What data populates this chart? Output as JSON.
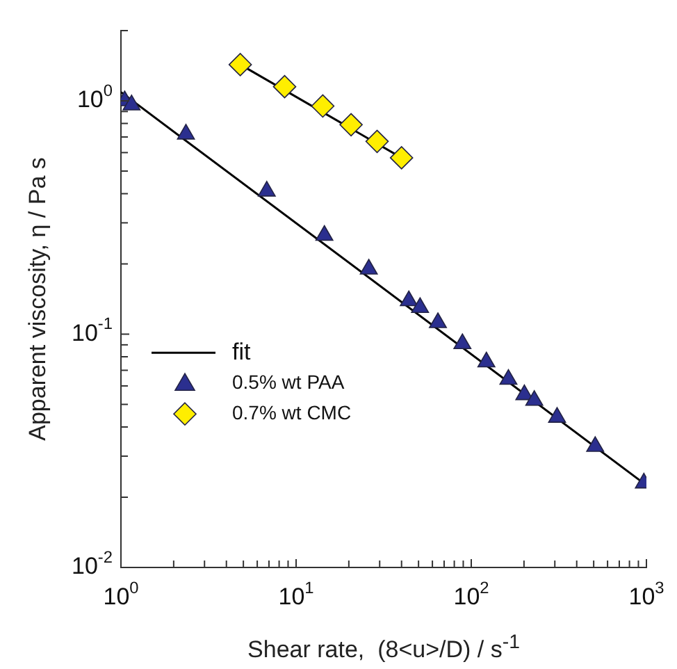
{
  "chart_data": {
    "type": "scatter",
    "xlabel": "Shear rate,  (8<u>/D) / s$^{-1}$",
    "ylabel": "Apparent viscosity, η / Pa s",
    "log": "xy",
    "grid": false,
    "legend": "left",
    "xlim": [
      1,
      1000
    ],
    "ylim": [
      0.01,
      2
    ],
    "xticks": [
      {
        "value": 1,
        "label": "10$^{0}$"
      },
      {
        "value": 2,
        "label": null
      },
      {
        "value": 3,
        "label": null
      },
      {
        "value": 4,
        "label": null
      },
      {
        "value": 5,
        "label": null
      },
      {
        "value": 6,
        "label": null
      },
      {
        "value": 7,
        "label": null
      },
      {
        "value": 8,
        "label": null
      },
      {
        "value": 9,
        "label": null
      },
      {
        "value": 10,
        "label": "10$^{1}$"
      },
      {
        "value": 20,
        "label": null
      },
      {
        "value": 30,
        "label": null
      },
      {
        "value": 40,
        "label": null
      },
      {
        "value": 50,
        "label": null
      },
      {
        "value": 60,
        "label": null
      },
      {
        "value": 70,
        "label": null
      },
      {
        "value": 80,
        "label": null
      },
      {
        "value": 90,
        "label": null
      },
      {
        "value": 100,
        "label": "10$^{2}$"
      },
      {
        "value": 200,
        "label": null
      },
      {
        "value": 300,
        "label": null
      },
      {
        "value": 400,
        "label": null
      },
      {
        "value": 500,
        "label": null
      },
      {
        "value": 600,
        "label": null
      },
      {
        "value": 700,
        "label": null
      },
      {
        "value": 800,
        "label": null
      },
      {
        "value": 900,
        "label": null
      },
      {
        "value": 1000,
        "label": "10$^{3}$"
      }
    ],
    "yticks": [
      {
        "value": 0.01,
        "label": "10$^{-2}$"
      },
      {
        "value": 0.02,
        "label": null
      },
      {
        "value": 0.03,
        "label": null
      },
      {
        "value": 0.04,
        "label": null
      },
      {
        "value": 0.05,
        "label": null
      },
      {
        "value": 0.06,
        "label": null
      },
      {
        "value": 0.07,
        "label": null
      },
      {
        "value": 0.08,
        "label": null
      },
      {
        "value": 0.09,
        "label": null
      },
      {
        "value": 0.1,
        "label": "10$^{-1}$"
      },
      {
        "value": 0.2,
        "label": null
      },
      {
        "value": 0.3,
        "label": null
      },
      {
        "value": 0.4,
        "label": null
      },
      {
        "value": 0.5,
        "label": null
      },
      {
        "value": 0.6,
        "label": null
      },
      {
        "value": 0.7,
        "label": null
      },
      {
        "value": 0.8,
        "label": null
      },
      {
        "value": 0.9,
        "label": null
      },
      {
        "value": 1,
        "label": "10$^{0}$"
      },
      {
        "value": 2,
        "label": null
      }
    ],
    "series": [
      {
        "name": "fit",
        "type": "line",
        "color": "#000000",
        "marker": "none",
        "line_style": "solid",
        "x": [
          1,
          1000
        ],
        "values": [
          1.09,
          0.0225
        ]
      },
      {
        "type": "line",
        "color": "#000000",
        "marker": "none",
        "line_style": "solid",
        "x": [
          4.8,
          40
        ],
        "values": [
          1.43,
          0.57
        ]
      },
      {
        "name": "0.5% wt PAA",
        "type": "scatter",
        "color": "#2b2f8f",
        "marker": "triangle",
        "x": [
          1.05,
          1.15,
          2.35,
          6.8,
          14.5,
          26,
          44,
          51,
          64.5,
          89,
          122,
          163,
          201,
          229,
          309,
          510,
          967
        ],
        "values": [
          1.0,
          0.96,
          0.72,
          0.41,
          0.265,
          0.19,
          0.139,
          0.13,
          0.112,
          0.091,
          0.076,
          0.064,
          0.055,
          0.052,
          0.044,
          0.033,
          0.023
        ]
      },
      {
        "name": "0.7% wt CMC",
        "type": "scatter",
        "color": "#ffee00",
        "marker": "diamond",
        "x": [
          4.8,
          8.6,
          14.2,
          20.6,
          29,
          40
        ],
        "values": [
          1.43,
          1.15,
          0.95,
          0.79,
          0.67,
          0.57
        ]
      }
    ]
  }
}
